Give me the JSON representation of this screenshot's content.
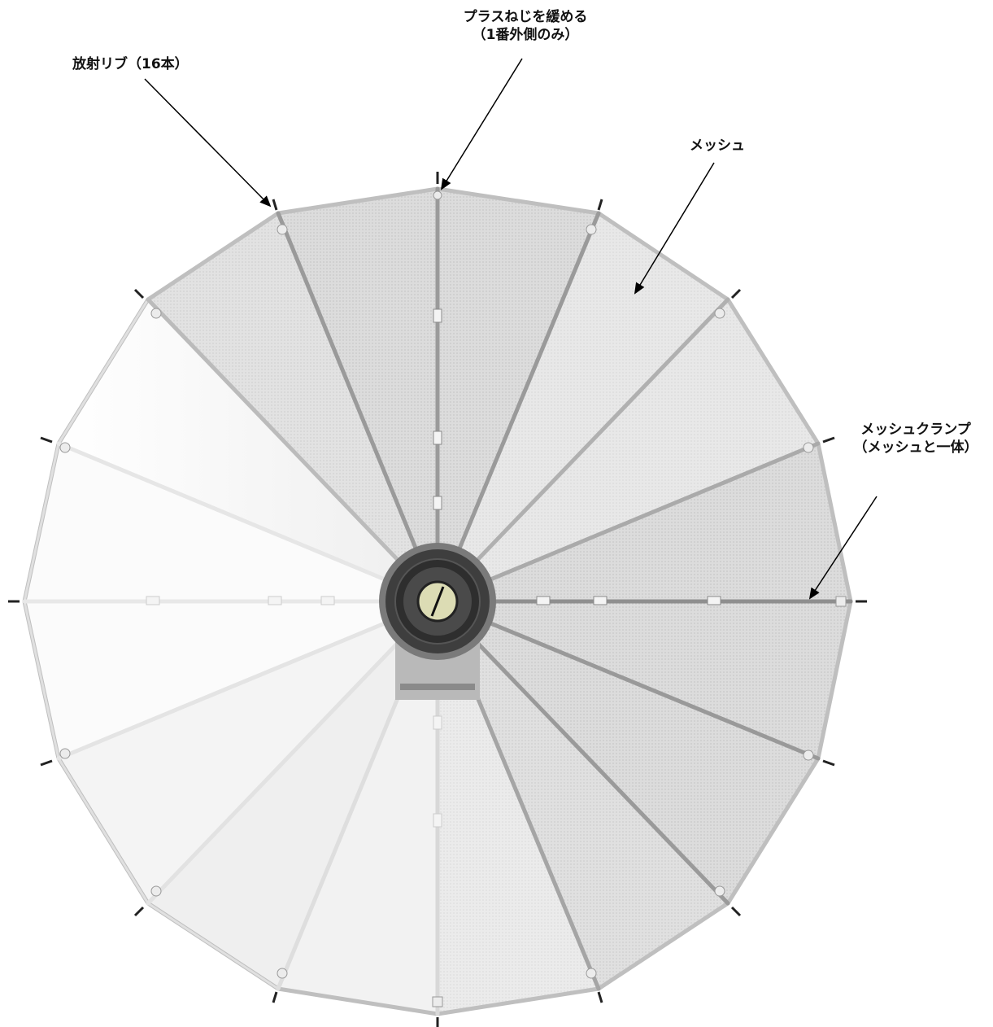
{
  "labels": {
    "ribs": "放射リブ（16本）",
    "screw_line1": "プラスねじを緩める",
    "screw_line2": "（1番外側のみ）",
    "mesh": "メッシュ",
    "clamp_line1": "メッシュクランプ",
    "clamp_line2": "（メッシュと一体）"
  },
  "colors": {
    "rib_dark": "#9a9a9a",
    "rib_light": "#e2e2e2",
    "mesh_shade": "#d3d3d3",
    "hub_outer": "#3a3a3a",
    "hub_center": "#dcdcb4",
    "background": "#ffffff"
  }
}
